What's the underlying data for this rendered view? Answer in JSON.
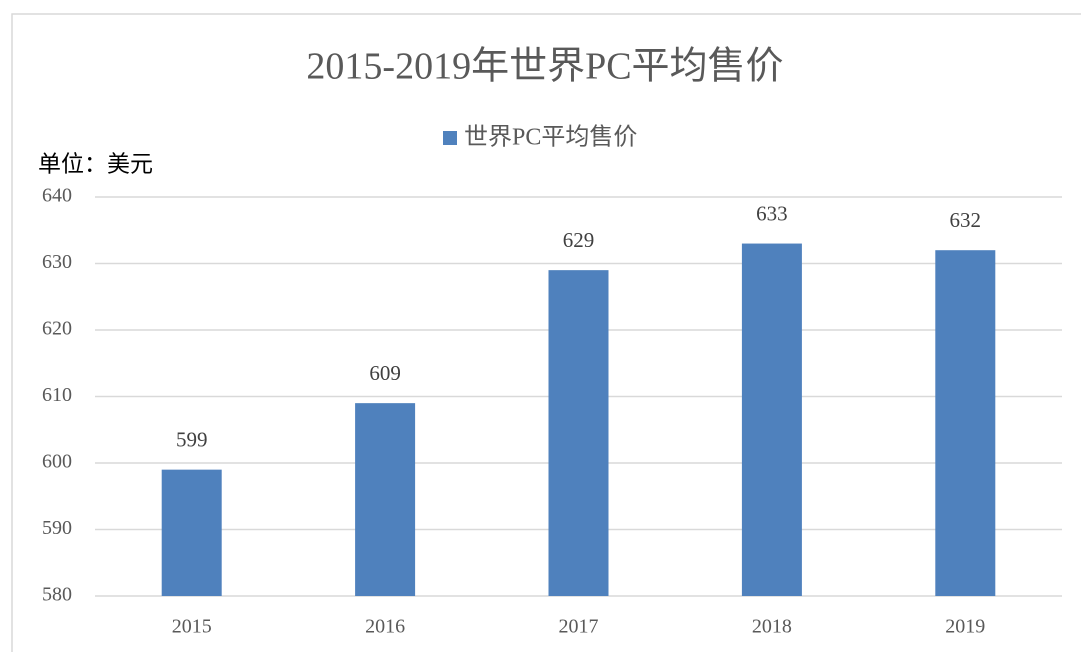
{
  "chart_data": {
    "type": "bar",
    "title": "2015-2019年世界PC平均售价",
    "unit_label": "单位：美元",
    "categories": [
      "2015",
      "2016",
      "2017",
      "2018",
      "2019"
    ],
    "series": [
      {
        "name": "世界PC平均售价",
        "color": "#4f81bd",
        "values": [
          599,
          609,
          629,
          633,
          632
        ]
      }
    ],
    "ylim": [
      580,
      640
    ],
    "yticks": [
      580,
      590,
      600,
      610,
      620,
      630,
      640
    ],
    "grid": true,
    "legend": "top"
  }
}
